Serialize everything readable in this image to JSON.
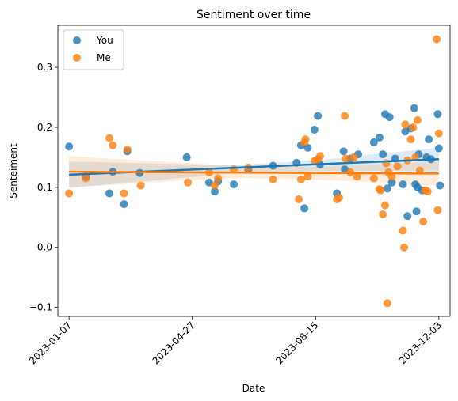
{
  "chart_data": {
    "type": "scatter",
    "title": "Sentiment over time",
    "xlabel": "Date",
    "ylabel": "Senteiment",
    "x_axis": {
      "type": "date",
      "range": [
        "2022-12-28",
        "2023-12-13"
      ],
      "ticks": [
        "2023-01-07",
        "2023-04-27",
        "2023-08-15",
        "2023-12-03"
      ]
    },
    "y_axis": {
      "range": [
        -0.115,
        0.37
      ],
      "ticks": [
        -0.1,
        0.0,
        0.1,
        0.2,
        0.3
      ],
      "tick_labels": [
        "−0.1",
        "0.0",
        "0.1",
        "0.2",
        "0.3"
      ]
    },
    "grid": false,
    "legend": "top-left",
    "series": [
      {
        "name": "You",
        "color": "#1f77b4",
        "trend": [
          [
            "2023-01-07",
            0.121
          ],
          [
            "2023-12-03",
            0.147
          ]
        ],
        "band_upper": [
          [
            "2023-01-07",
            0.143
          ],
          [
            "2023-06-01",
            0.137
          ],
          [
            "2023-08-15",
            0.145
          ],
          [
            "2023-12-03",
            0.166
          ]
        ],
        "band_lower": [
          [
            "2023-01-07",
            0.099
          ],
          [
            "2023-06-01",
            0.123
          ],
          [
            "2023-08-15",
            0.127
          ],
          [
            "2023-12-03",
            0.128
          ]
        ],
        "points": [
          [
            "2023-01-07",
            0.168
          ],
          [
            "2023-01-22",
            0.118
          ],
          [
            "2023-02-12",
            0.09
          ],
          [
            "2023-02-15",
            0.126
          ],
          [
            "2023-02-25",
            0.072
          ],
          [
            "2023-02-28",
            0.16
          ],
          [
            "2023-03-11",
            0.124
          ],
          [
            "2023-04-22",
            0.15
          ],
          [
            "2023-05-12",
            0.108
          ],
          [
            "2023-05-17",
            0.093
          ],
          [
            "2023-05-20",
            0.11
          ],
          [
            "2023-06-03",
            0.105
          ],
          [
            "2023-06-16",
            0.13
          ],
          [
            "2023-07-08",
            0.136
          ],
          [
            "2023-07-29",
            0.141
          ],
          [
            "2023-08-02",
            0.17
          ],
          [
            "2023-08-05",
            0.065
          ],
          [
            "2023-08-08",
            0.166
          ],
          [
            "2023-08-14",
            0.196
          ],
          [
            "2023-08-17",
            0.219
          ],
          [
            "2023-08-19",
            0.138
          ],
          [
            "2023-09-03",
            0.09
          ],
          [
            "2023-09-09",
            0.16
          ],
          [
            "2023-09-10",
            0.13
          ],
          [
            "2023-09-15",
            0.148
          ],
          [
            "2023-09-22",
            0.155
          ],
          [
            "2023-10-06",
            0.175
          ],
          [
            "2023-10-11",
            0.183
          ],
          [
            "2023-10-14",
            0.155
          ],
          [
            "2023-10-16",
            0.222
          ],
          [
            "2023-10-18",
            0.098
          ],
          [
            "2023-10-20",
            0.217
          ],
          [
            "2023-10-22",
            0.108
          ],
          [
            "2023-10-25",
            0.148
          ],
          [
            "2023-11-01",
            0.105
          ],
          [
            "2023-11-03",
            0.193
          ],
          [
            "2023-11-05",
            0.052
          ],
          [
            "2023-11-08",
            0.198
          ],
          [
            "2023-11-11",
            0.232
          ],
          [
            "2023-11-12",
            0.105
          ],
          [
            "2023-11-13",
            0.06
          ],
          [
            "2023-11-14",
            0.1
          ],
          [
            "2023-11-15",
            0.155
          ],
          [
            "2023-11-18",
            0.095
          ],
          [
            "2023-11-22",
            0.15
          ],
          [
            "2023-11-24",
            0.18
          ],
          [
            "2023-11-26",
            0.147
          ],
          [
            "2023-12-02",
            0.222
          ],
          [
            "2023-12-03",
            0.165
          ],
          [
            "2023-12-04",
            0.103
          ]
        ]
      },
      {
        "name": "Me",
        "color": "#ff7f0e",
        "trend": [
          [
            "2023-01-07",
            0.126
          ],
          [
            "2023-12-03",
            0.123
          ]
        ],
        "band_upper": [
          [
            "2023-01-07",
            0.152
          ],
          [
            "2023-06-01",
            0.136
          ],
          [
            "2023-08-15",
            0.134
          ],
          [
            "2023-12-03",
            0.143
          ]
        ],
        "band_lower": [
          [
            "2023-01-07",
            0.1
          ],
          [
            "2023-06-01",
            0.116
          ],
          [
            "2023-08-15",
            0.113
          ],
          [
            "2023-12-03",
            0.103
          ]
        ],
        "points": [
          [
            "2023-01-07",
            0.09
          ],
          [
            "2023-01-22",
            0.115
          ],
          [
            "2023-02-12",
            0.182
          ],
          [
            "2023-02-15",
            0.17
          ],
          [
            "2023-02-25",
            0.09
          ],
          [
            "2023-02-28",
            0.163
          ],
          [
            "2023-03-12",
            0.103
          ],
          [
            "2023-04-23",
            0.108
          ],
          [
            "2023-05-12",
            0.125
          ],
          [
            "2023-05-17",
            0.103
          ],
          [
            "2023-05-20",
            0.115
          ],
          [
            "2023-06-03",
            0.13
          ],
          [
            "2023-06-16",
            0.133
          ],
          [
            "2023-07-08",
            0.113
          ],
          [
            "2023-07-31",
            0.08
          ],
          [
            "2023-08-02",
            0.113
          ],
          [
            "2023-08-05",
            0.175
          ],
          [
            "2023-08-06",
            0.18
          ],
          [
            "2023-08-08",
            0.118
          ],
          [
            "2023-08-14",
            0.144
          ],
          [
            "2023-08-17",
            0.147
          ],
          [
            "2023-08-19",
            0.152
          ],
          [
            "2023-09-03",
            0.08
          ],
          [
            "2023-09-05",
            0.083
          ],
          [
            "2023-09-10",
            0.219
          ],
          [
            "2023-09-11",
            0.148
          ],
          [
            "2023-09-15",
            0.125
          ],
          [
            "2023-09-18",
            0.15
          ],
          [
            "2023-09-21",
            0.118
          ],
          [
            "2023-10-06",
            0.115
          ],
          [
            "2023-10-11",
            0.097
          ],
          [
            "2023-10-12",
            0.095
          ],
          [
            "2023-10-14",
            0.055
          ],
          [
            "2023-10-16",
            0.07
          ],
          [
            "2023-10-17",
            0.14
          ],
          [
            "2023-10-18",
            -0.093
          ],
          [
            "2023-10-19",
            0.125
          ],
          [
            "2023-10-22",
            0.118
          ],
          [
            "2023-10-27",
            0.135
          ],
          [
            "2023-11-01",
            0.028
          ],
          [
            "2023-11-02",
            0.0
          ],
          [
            "2023-11-03",
            0.205
          ],
          [
            "2023-11-05",
            0.145
          ],
          [
            "2023-11-08",
            0.18
          ],
          [
            "2023-11-10",
            0.2
          ],
          [
            "2023-11-12",
            0.15
          ],
          [
            "2023-11-14",
            0.212
          ],
          [
            "2023-11-16",
            0.128
          ],
          [
            "2023-11-19",
            0.043
          ],
          [
            "2023-11-21",
            0.095
          ],
          [
            "2023-11-23",
            0.093
          ],
          [
            "2023-12-01",
            0.347
          ],
          [
            "2023-12-02",
            0.062
          ],
          [
            "2023-12-03",
            0.19
          ]
        ]
      }
    ]
  }
}
